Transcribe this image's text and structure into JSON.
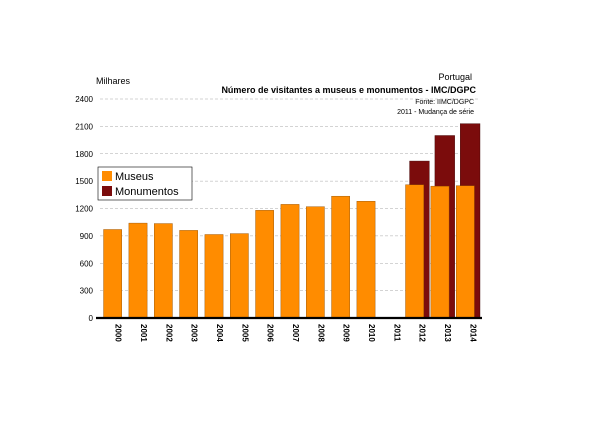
{
  "chart_data": {
    "type": "bar",
    "unit_label": "Milhares",
    "country": "Portugal",
    "title": "Número de visitantes a museus e monumentos - IMC/DGPC",
    "source": "Fonte: IIMC/DGPC",
    "note": "2011 - Mudança de série",
    "categories": [
      "2000",
      "2001",
      "2002",
      "2003",
      "2004",
      "2005",
      "2006",
      "2007",
      "2008",
      "2009",
      "2010",
      "2011",
      "2012",
      "2013",
      "2014"
    ],
    "ylim": [
      0,
      2400
    ],
    "yticks": [
      0,
      300,
      600,
      900,
      1200,
      1500,
      1800,
      2100,
      2400
    ],
    "legend_position": "left",
    "series": [
      {
        "name": "Museus",
        "color": "#FF8C00",
        "values": [
          970,
          1040,
          1035,
          960,
          915,
          925,
          1180,
          1245,
          1220,
          1335,
          1280,
          null,
          1460,
          1445,
          1450
        ]
      },
      {
        "name": "Monumentos",
        "color": "#7B0C0C",
        "values": [
          null,
          null,
          null,
          null,
          null,
          null,
          null,
          null,
          null,
          null,
          null,
          null,
          1720,
          2000,
          2130
        ]
      }
    ]
  }
}
